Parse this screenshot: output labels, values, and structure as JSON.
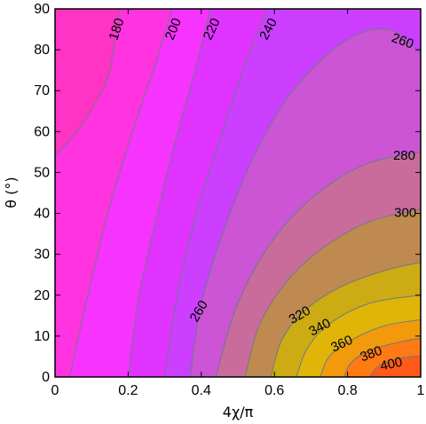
{
  "chart_data": {
    "type": "contour",
    "xlabel": "4χ/π",
    "ylabel": "θ (°)",
    "xlim": [
      0,
      1
    ],
    "ylim": [
      0,
      90
    ],
    "x_ticks": [
      {
        "value": 0,
        "label": "0"
      },
      {
        "value": 0.2,
        "label": "0.2"
      },
      {
        "value": 0.4,
        "label": "0.4"
      },
      {
        "value": 0.6,
        "label": "0.6"
      },
      {
        "value": 0.8,
        "label": "0.8"
      },
      {
        "value": 1,
        "label": "1"
      }
    ],
    "y_ticks": [
      {
        "value": 0,
        "label": "0"
      },
      {
        "value": 10,
        "label": "10"
      },
      {
        "value": 20,
        "label": "20"
      },
      {
        "value": 30,
        "label": "30"
      },
      {
        "value": 40,
        "label": "40"
      },
      {
        "value": 50,
        "label": "50"
      },
      {
        "value": 60,
        "label": "60"
      },
      {
        "value": 70,
        "label": "70"
      },
      {
        "value": 80,
        "label": "80"
      },
      {
        "value": 90,
        "label": "90"
      }
    ],
    "levels": [
      180,
      200,
      220,
      240,
      260,
      280,
      300,
      320,
      340,
      360,
      380,
      400
    ],
    "band_colors": [
      "#ff33c4",
      "#ff33e0",
      "#f733ff",
      "#e133ff",
      "#cc3fff",
      "#cb55d4",
      "#c96c9c",
      "#bf8a50",
      "#ccab14",
      "#e0b508",
      "#f29a0c",
      "#ff7a12",
      "#ff5a1a"
    ],
    "contour_labels": [
      {
        "text": "180",
        "x": 0.17,
        "y": 85
      },
      {
        "text": "200",
        "x": 0.325,
        "y": 85
      },
      {
        "text": "220",
        "x": 0.43,
        "y": 85
      },
      {
        "text": "240",
        "x": 0.585,
        "y": 85
      },
      {
        "text": "260",
        "x": 0.95,
        "y": 82
      },
      {
        "text": "280",
        "x": 0.955,
        "y": 54
      },
      {
        "text": "300",
        "x": 0.958,
        "y": 40
      },
      {
        "text": "260",
        "x": 0.395,
        "y": 16
      },
      {
        "text": "320",
        "x": 0.67,
        "y": 15
      },
      {
        "text": "340",
        "x": 0.725,
        "y": 12
      },
      {
        "text": "360",
        "x": 0.785,
        "y": 8
      },
      {
        "text": "380",
        "x": 0.865,
        "y": 5.5
      },
      {
        "text": "400",
        "x": 0.92,
        "y": 3
      }
    ],
    "grid": false
  }
}
